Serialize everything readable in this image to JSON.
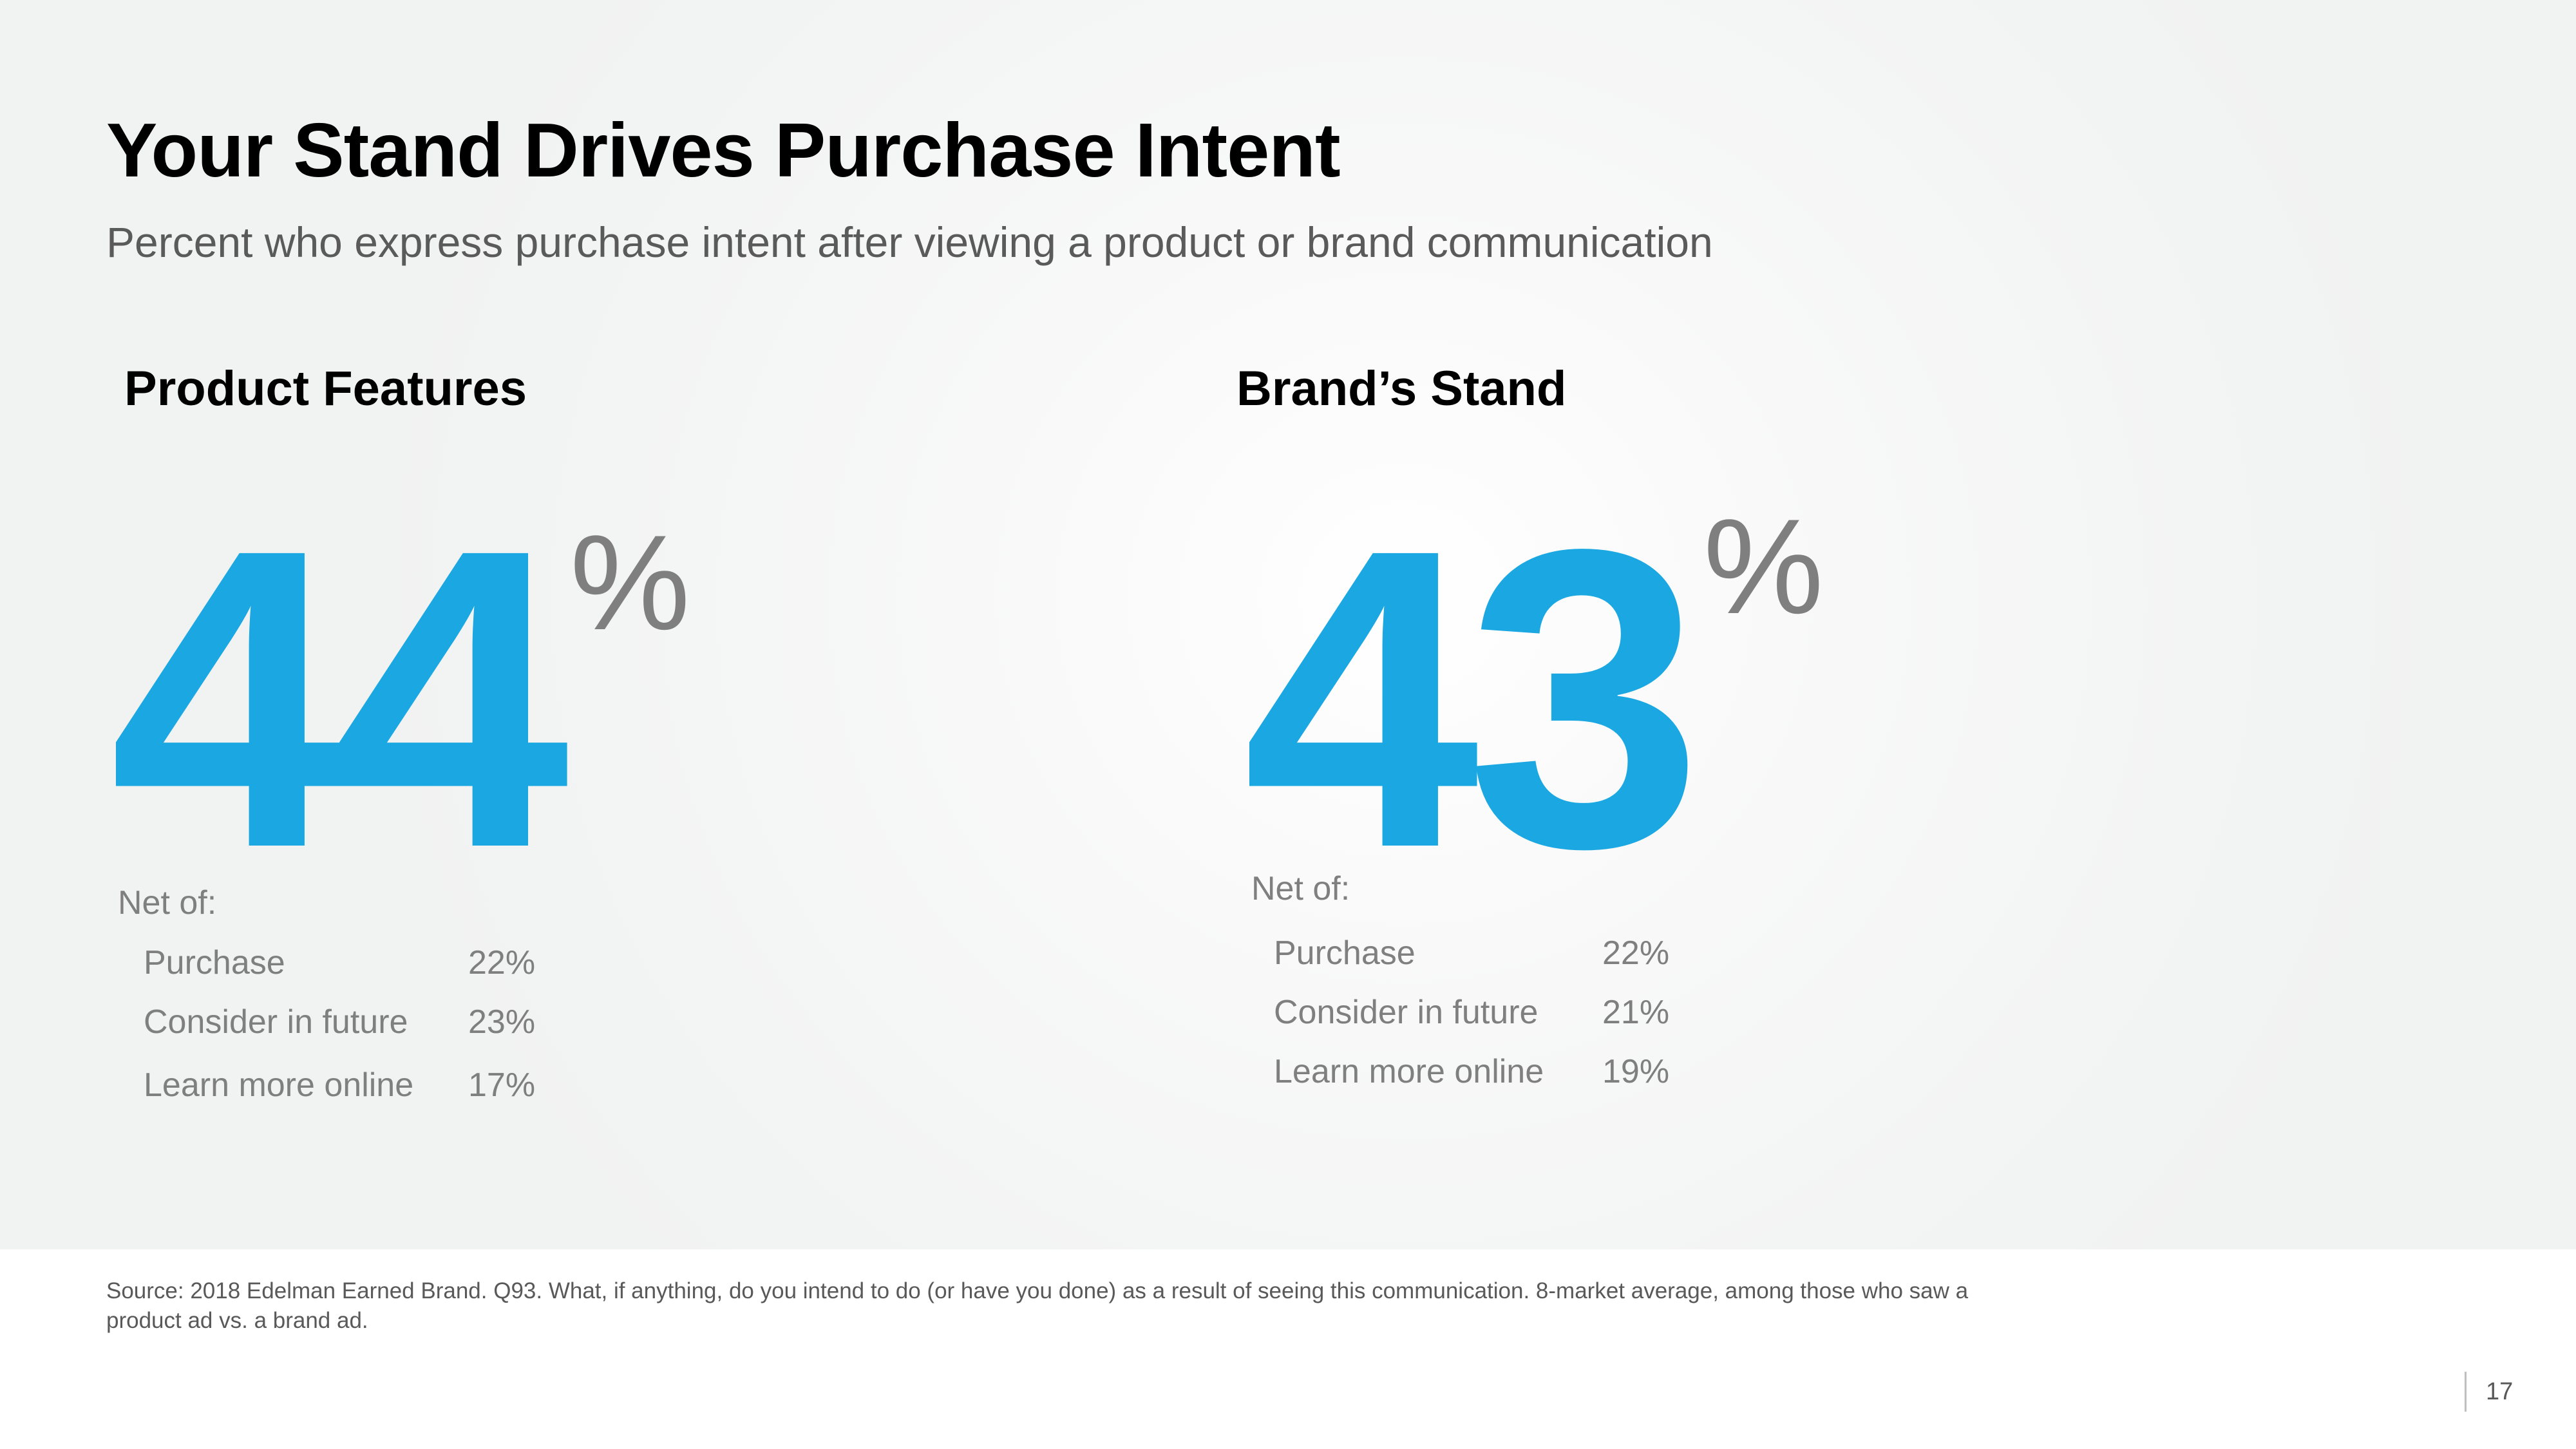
{
  "title": "Your Stand Drives Purchase Intent",
  "subtitle": "Percent who express purchase intent after viewing a product or brand communication",
  "panels": [
    {
      "heading": "Product Features",
      "value": "44",
      "unit": "%",
      "net_label": "Net of:",
      "breakdown": [
        {
          "label": "Purchase",
          "value": "22%"
        },
        {
          "label": "Consider in future",
          "value": "23%"
        },
        {
          "label": "Learn more online",
          "value": "17%"
        }
      ]
    },
    {
      "heading": "Brand’s Stand",
      "value": "43",
      "unit": "%",
      "net_label": "Net of:",
      "breakdown": [
        {
          "label": "Purchase",
          "value": "22%"
        },
        {
          "label": "Consider in future",
          "value": "21%"
        },
        {
          "label": "Learn more online",
          "value": "19%"
        }
      ]
    }
  ],
  "source": "Source: 2018 Edelman Earned Brand. Q93. What, if anything, do you intend to do (or have you done) as a result of seeing this communication. 8-market average, among those who saw a product ad vs. a brand ad.",
  "page_number": "17",
  "colors": {
    "accent": "#1ba8e2",
    "muted": "#7f7f7f"
  }
}
